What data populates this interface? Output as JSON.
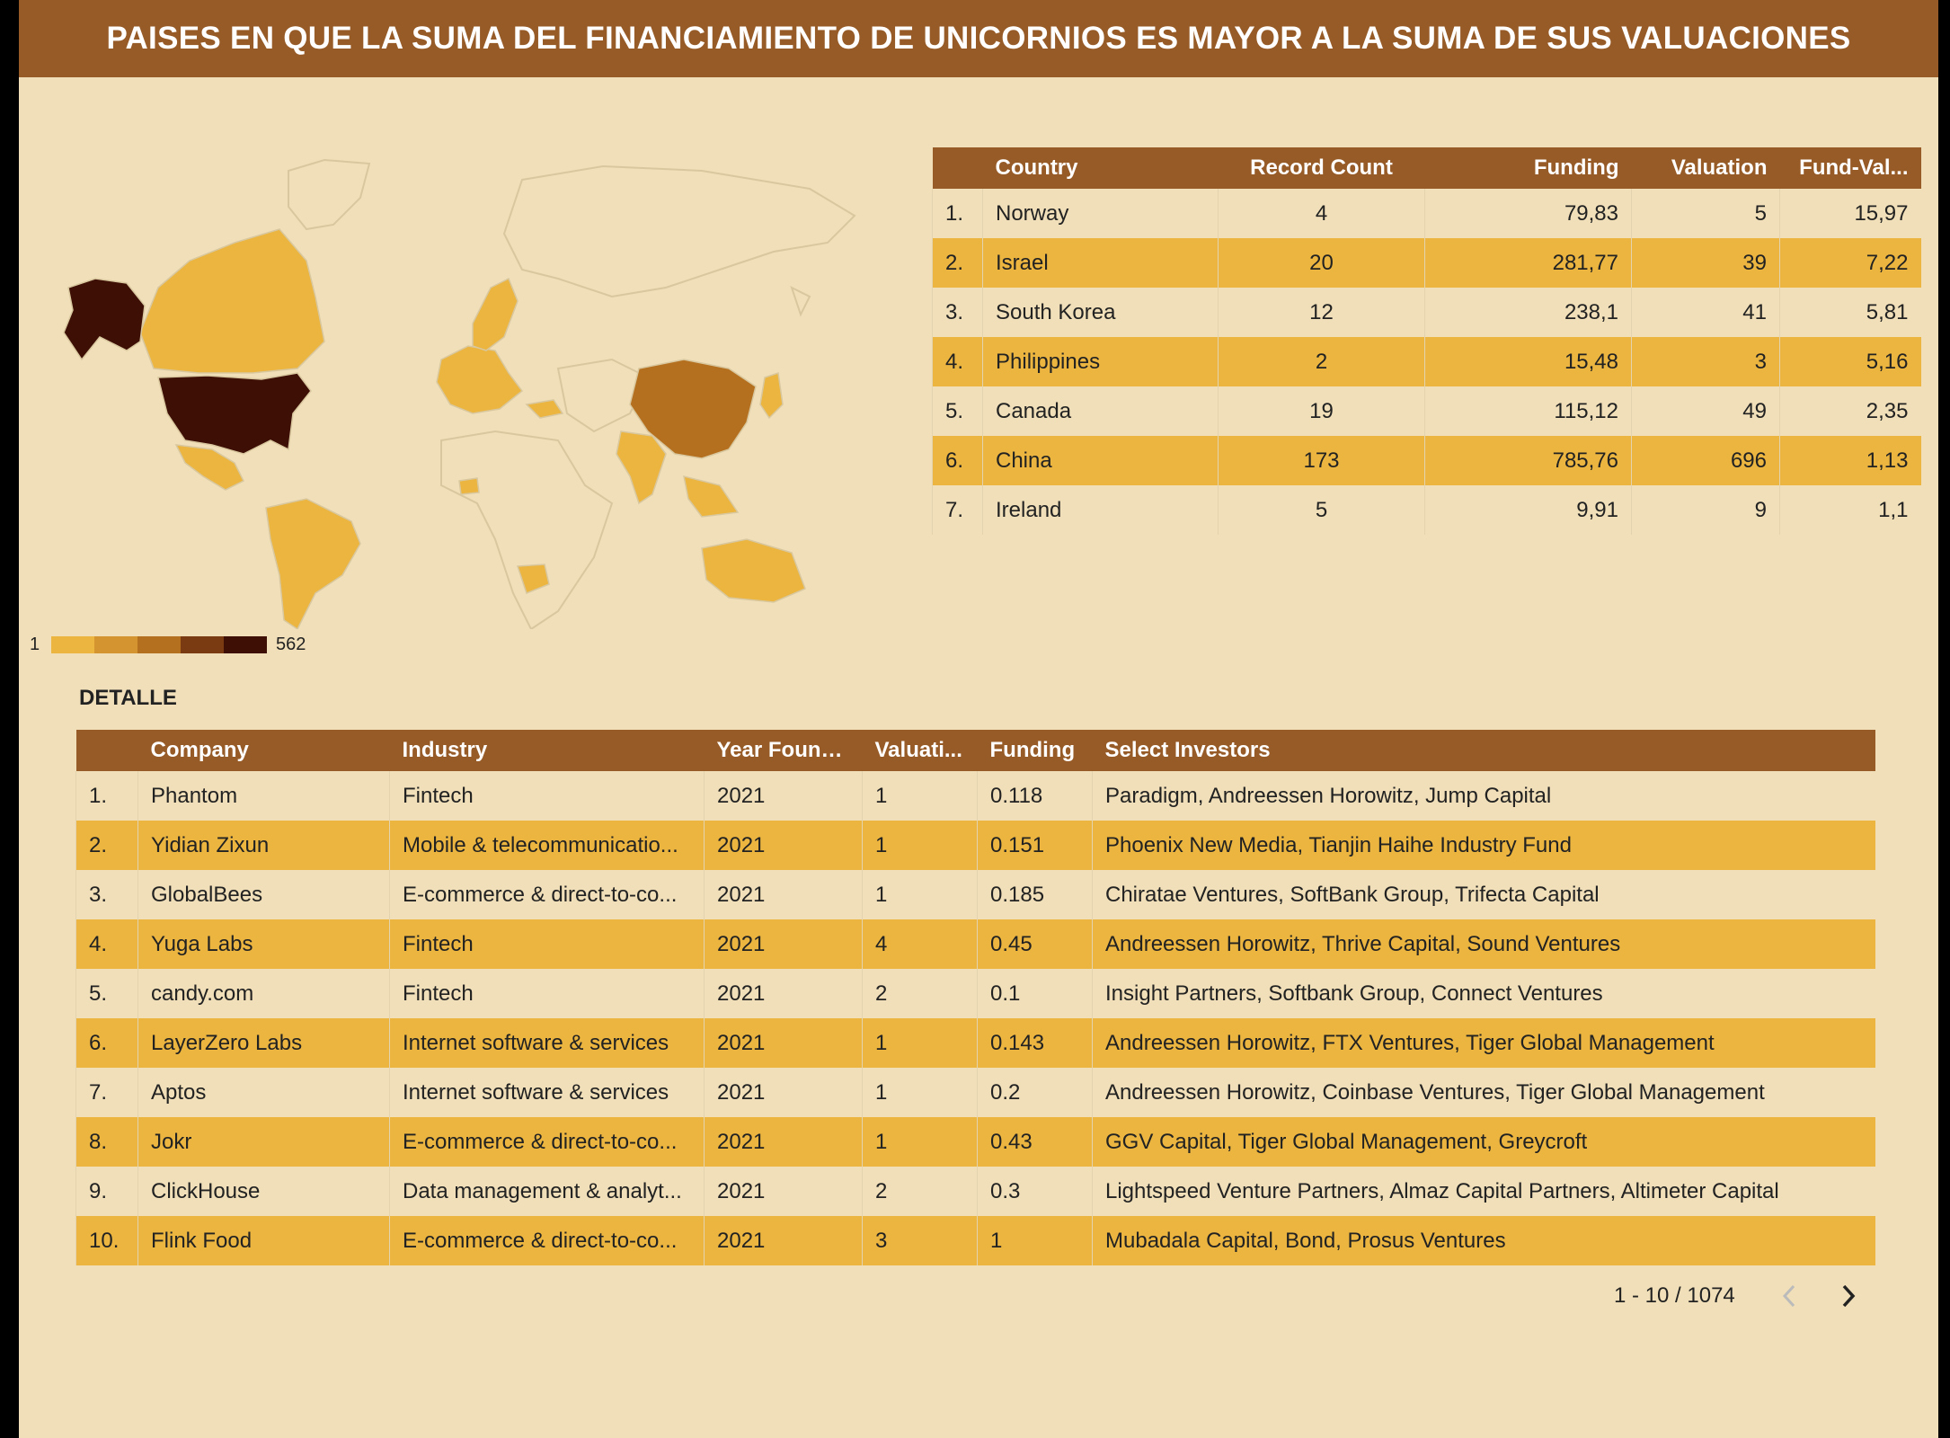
{
  "header": {
    "title": "PAISES EN QUE LA SUMA DEL FINANCIAMIENTO DE UNICORNIOS ES MAYOR A LA SUMA DE SUS VALUACIONES"
  },
  "map": {
    "legend_min": "1",
    "legend_max": "562",
    "colors": {
      "land": "#f0dfb8",
      "border": "#d9c89f",
      "low": "#ebb540",
      "mid": "#b5701f",
      "high": "#3e0f05"
    }
  },
  "country_table": {
    "headers": [
      "",
      "Country",
      "Record Count",
      "Funding",
      "Valuation",
      "Fund-Val..."
    ],
    "rows": [
      [
        "1.",
        "Norway",
        "4",
        "79,83",
        "5",
        "15,97"
      ],
      [
        "2.",
        "Israel",
        "20",
        "281,77",
        "39",
        "7,22"
      ],
      [
        "3.",
        "South Korea",
        "12",
        "238,1",
        "41",
        "5,81"
      ],
      [
        "4.",
        "Philippines",
        "2",
        "15,48",
        "3",
        "5,16"
      ],
      [
        "5.",
        "Canada",
        "19",
        "115,12",
        "49",
        "2,35"
      ],
      [
        "6.",
        "China",
        "173",
        "785,76",
        "696",
        "1,13"
      ],
      [
        "7.",
        "Ireland",
        "5",
        "9,91",
        "9",
        "1,1"
      ]
    ]
  },
  "detail": {
    "label": "DETALLE",
    "headers": [
      "",
      "Company",
      "Industry",
      "Year Found...",
      "Valuati...",
      "Funding",
      "Select Investors"
    ],
    "rows": [
      [
        "1.",
        "Phantom",
        "Fintech",
        "2021",
        "1",
        "0.118",
        "Paradigm, Andreessen Horowitz, Jump Capital"
      ],
      [
        "2.",
        "Yidian Zixun",
        "Mobile & telecommunicatio...",
        "2021",
        "1",
        "0.151",
        "Phoenix New Media, Tianjin Haihe Industry Fund"
      ],
      [
        "3.",
        "GlobalBees",
        "E-commerce & direct-to-co...",
        "2021",
        "1",
        "0.185",
        "Chiratae Ventures, SoftBank Group, Trifecta Capital"
      ],
      [
        "4.",
        "Yuga Labs",
        "Fintech",
        "2021",
        "4",
        "0.45",
        "Andreessen Horowitz, Thrive Capital, Sound Ventures"
      ],
      [
        "5.",
        "candy.com",
        "Fintech",
        "2021",
        "2",
        "0.1",
        "Insight Partners, Softbank Group, Connect Ventures"
      ],
      [
        "6.",
        "LayerZero Labs",
        "Internet software & services",
        "2021",
        "1",
        "0.143",
        "Andreessen Horowitz, FTX Ventures, Tiger Global Management"
      ],
      [
        "7.",
        "Aptos",
        "Internet software & services",
        "2021",
        "1",
        "0.2",
        "Andreessen Horowitz, Coinbase Ventures, Tiger Global Management"
      ],
      [
        "8.",
        "Jokr",
        "E-commerce & direct-to-co...",
        "2021",
        "1",
        "0.43",
        "GGV Capital, Tiger Global Management, Greycroft"
      ],
      [
        "9.",
        "ClickHouse",
        "Data management & analyt...",
        "2021",
        "2",
        "0.3",
        "Lightspeed Venture Partners, Almaz Capital Partners, Altimeter Capital"
      ],
      [
        "10.",
        "Flink Food",
        "E-commerce & direct-to-co...",
        "2021",
        "3",
        "1",
        "Mubadala Capital, Bond, Prosus Ventures"
      ]
    ],
    "pagination": "1 - 10 / 1074"
  },
  "icons": {
    "prev": "chevron-left-icon",
    "next": "chevron-right-icon"
  }
}
